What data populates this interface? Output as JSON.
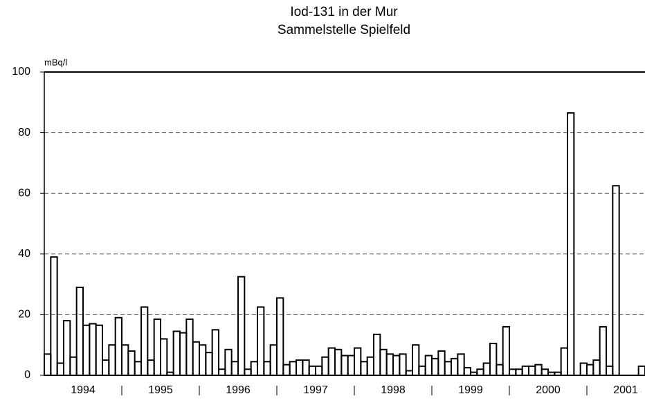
{
  "chart_data": {
    "type": "step",
    "title": "Iod-131 in der Mur",
    "subtitle": "Sammelstelle Spielfeld",
    "y_label": "mBq/l",
    "years": [
      "1994",
      "1995",
      "1996",
      "1997",
      "1998",
      "1999",
      "2000",
      "2001"
    ],
    "values": [
      7,
      39,
      4,
      18,
      6,
      29,
      16.5,
      17,
      16.5,
      5,
      10,
      19,
      10,
      8,
      4.5,
      22.5,
      5,
      18.5,
      12,
      1,
      14.5,
      14,
      18.5,
      11,
      10,
      7.5,
      15,
      2,
      8.5,
      4.5,
      32.5,
      2,
      4.5,
      22.5,
      4.5,
      10,
      25.5,
      3.5,
      4.5,
      5,
      5,
      3,
      3,
      6,
      9,
      8.5,
      6.5,
      6.5,
      9,
      4.5,
      6,
      13.5,
      8.5,
      7,
      6.5,
      7,
      1.5,
      10,
      3,
      6.5,
      5.5,
      8,
      4.5,
      5.5,
      7,
      2.5,
      1,
      2,
      4,
      10.5,
      3.5,
      16,
      2,
      2,
      3,
      3,
      3.5,
      2,
      1,
      1,
      9,
      86.5,
      0,
      4,
      3.5,
      5,
      16,
      3,
      62.5,
      0,
      0,
      0,
      3
    ],
    "color": "#000000",
    "ylim": [
      0,
      100
    ],
    "yticks": [
      0,
      20,
      40,
      60,
      80,
      100
    ],
    "grid": true
  }
}
